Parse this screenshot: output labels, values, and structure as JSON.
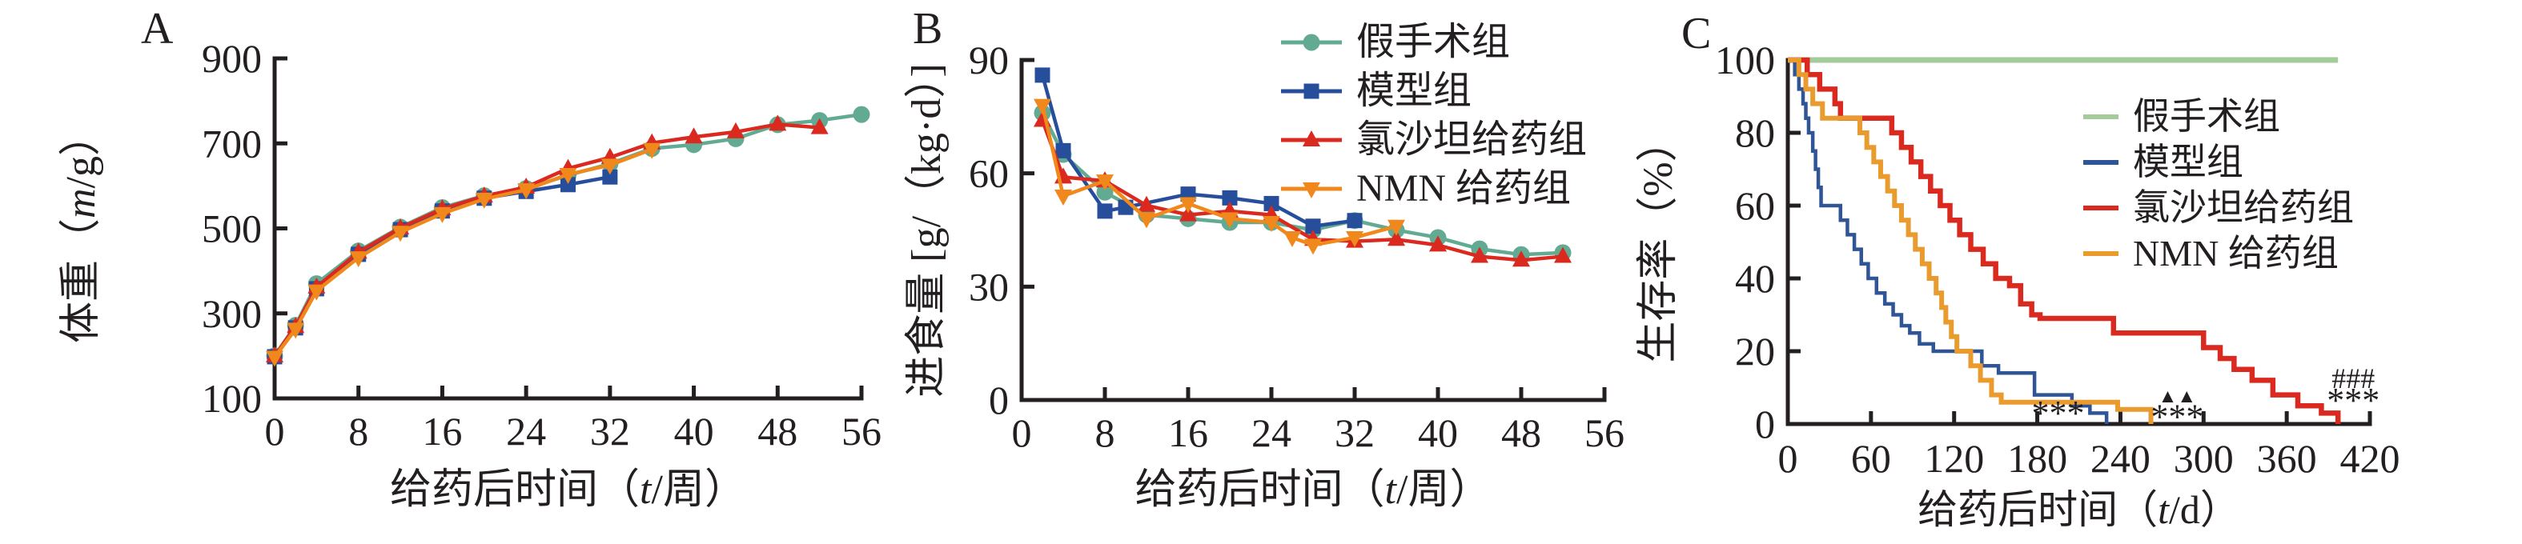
{
  "figure_type": "three-panel scientific figure (rat study: body weight, food intake, survival)",
  "colors": {
    "axis": "#231f20",
    "text": "#231f20",
    "sham_ab": "#63aa93",
    "model_ab": "#274e9b",
    "losartan": "#da291e",
    "nmn_ab": "#f0881c",
    "sham_c": "#a4cb9a",
    "model_c": "#2f5597",
    "losartan_c": "#da291e",
    "nmn_c": "#e99b2e",
    "annotation": "#2b2a29"
  },
  "panels": [
    {
      "letter": "A",
      "ylabel": {
        "pre": "体重（",
        "var": "m",
        "post": "/g）"
      },
      "xlabel": {
        "pre": "给药后时间（",
        "var": "t",
        "post": "/周）"
      }
    },
    {
      "letter": "B",
      "ylabel": {
        "pre": "进食量 [g/（kg·d）]",
        "var": "",
        "post": ""
      },
      "xlabel": {
        "pre": "给药后时间（",
        "var": "t",
        "post": "/周）"
      }
    },
    {
      "letter": "C",
      "ylabel": {
        "pre": "生存率（%）",
        "var": "",
        "post": ""
      },
      "xlabel": {
        "pre": "给药后时间（",
        "var": "t",
        "post": "/d）"
      }
    }
  ],
  "legend": {
    "items": [
      {
        "key": "sham",
        "label": "假手术组",
        "marker": "circle",
        "color_ab": "#63aa93",
        "color_c": "#a4cb9a"
      },
      {
        "key": "model",
        "label": "模型组",
        "marker": "square",
        "color_ab": "#274e9b",
        "color_c": "#2f5597"
      },
      {
        "key": "losartan",
        "label": "氯沙坦给药组",
        "marker": "triangle-up",
        "color_ab": "#da291e",
        "color_c": "#da291e"
      },
      {
        "key": "nmn",
        "label": "NMN 给药组",
        "marker": "triangle-down",
        "color_ab": "#f0881c",
        "color_c": "#e99b2e"
      }
    ]
  },
  "chart_data": [
    {
      "id": "A",
      "type": "line",
      "title": "",
      "xlabel": "给药后时间（t/周）",
      "ylabel": "体重（m/g）",
      "xlim": [
        0,
        56
      ],
      "xticks": [
        0,
        8,
        16,
        24,
        32,
        40,
        48,
        56
      ],
      "ylim": [
        100,
        900
      ],
      "yticks": [
        100,
        300,
        500,
        700,
        900
      ],
      "grid": false,
      "series": [
        {
          "key": "sham",
          "name": "假手术组",
          "marker": "circle",
          "color": "#63aa93",
          "x": [
            0,
            2,
            4,
            8,
            12,
            16,
            20,
            24,
            28,
            32,
            36,
            40,
            44,
            48,
            52,
            56
          ],
          "y": [
            200,
            272,
            370,
            447,
            503,
            549,
            577,
            594,
            625,
            652,
            688,
            697,
            711,
            744,
            754,
            768
          ]
        },
        {
          "key": "model",
          "name": "模型组",
          "marker": "square",
          "color": "#274e9b",
          "x": [
            0,
            2,
            4,
            8,
            12,
            16,
            20,
            24,
            28,
            32
          ],
          "y": [
            198,
            266,
            358,
            439,
            497,
            541,
            571,
            587,
            603,
            621
          ]
        },
        {
          "key": "losartan",
          "name": "氯沙坦给药组",
          "marker": "triangle-up",
          "color": "#da291e",
          "x": [
            0,
            2,
            4,
            8,
            12,
            16,
            20,
            24,
            28,
            32,
            36,
            40,
            44,
            48,
            52
          ],
          "y": [
            200,
            269,
            362,
            444,
            501,
            546,
            576,
            597,
            641,
            667,
            701,
            715,
            727,
            745,
            737
          ]
        },
        {
          "key": "nmn",
          "name": "NMN 给药组",
          "marker": "triangle-down",
          "color": "#f0881c",
          "x": [
            0,
            2,
            4,
            8,
            12,
            16,
            20,
            24,
            28,
            32,
            36
          ],
          "y": [
            197,
            263,
            353,
            431,
            491,
            535,
            569,
            591,
            627,
            649,
            686
          ]
        }
      ]
    },
    {
      "id": "B",
      "type": "line",
      "title": "",
      "xlabel": "给药后时间（t/周）",
      "ylabel": "进食量 [g/（kg·d）]",
      "xlim": [
        0,
        56
      ],
      "xticks": [
        0,
        8,
        16,
        24,
        32,
        40,
        48,
        56
      ],
      "ylim": [
        0,
        90
      ],
      "yticks": [
        0,
        30,
        60,
        90
      ],
      "grid": false,
      "series": [
        {
          "key": "sham",
          "name": "假手术组",
          "marker": "circle",
          "color": "#63aa93",
          "x": [
            2,
            4,
            8,
            12,
            16,
            20,
            24,
            28,
            32,
            36,
            40,
            44,
            48,
            52
          ],
          "y": [
            76,
            65,
            55,
            49,
            48,
            47,
            47,
            45,
            47.5,
            45,
            43,
            40,
            38.5,
            39
          ]
        },
        {
          "key": "model",
          "name": "模型组",
          "marker": "square",
          "color": "#274e9b",
          "x": [
            2,
            4,
            8,
            10,
            16,
            20,
            24,
            28,
            32
          ],
          "y": [
            86,
            66,
            50,
            51,
            54.5,
            53.5,
            52,
            46,
            47.5
          ]
        },
        {
          "key": "losartan",
          "name": "氯沙坦给药组",
          "marker": "triangle-up",
          "color": "#da291e",
          "x": [
            2,
            4,
            8,
            12,
            16,
            20,
            24,
            28,
            32,
            36,
            40,
            44,
            48,
            52
          ],
          "y": [
            74,
            59,
            58,
            51.5,
            49,
            50,
            49,
            42.5,
            42,
            42.5,
            41,
            38,
            37,
            38
          ]
        },
        {
          "key": "nmn",
          "name": "NMN 给药组",
          "marker": "triangle-down",
          "color": "#f0881c",
          "x": [
            2,
            4,
            8,
            12,
            16,
            20,
            24,
            26,
            28,
            32,
            36
          ],
          "y": [
            78,
            54,
            58,
            48,
            52,
            48,
            47,
            43,
            41,
            43,
            46
          ]
        }
      ]
    },
    {
      "id": "C",
      "type": "step-survival",
      "title": "",
      "xlabel": "给药后时间（t/d）",
      "ylabel": "生存率（%）",
      "xlim": [
        0,
        420
      ],
      "xticks": [
        0,
        60,
        120,
        180,
        240,
        300,
        360,
        420
      ],
      "ylim": [
        0,
        100
      ],
      "yticks": [
        0,
        20,
        40,
        60,
        80,
        100
      ],
      "grid": false,
      "series": [
        {
          "key": "sham",
          "name": "假手术组",
          "color": "#a4cb9a",
          "width": 7,
          "points": [
            [
              0,
              100
            ],
            [
              397,
              100
            ]
          ]
        },
        {
          "key": "model",
          "name": "模型组",
          "color": "#2f5597",
          "width": 4.5,
          "points": [
            [
              0,
              100
            ],
            [
              5,
              96
            ],
            [
              8,
              92
            ],
            [
              11,
              88
            ],
            [
              13,
              84
            ],
            [
              15,
              80
            ],
            [
              18,
              75
            ],
            [
              20,
              70
            ],
            [
              22,
              65
            ],
            [
              24,
              60
            ],
            [
              38,
              56
            ],
            [
              43,
              52
            ],
            [
              48,
              48
            ],
            [
              53,
              44
            ],
            [
              58,
              40
            ],
            [
              64,
              36
            ],
            [
              70,
              33
            ],
            [
              76,
              30
            ],
            [
              82,
              27
            ],
            [
              88,
              25
            ],
            [
              95,
              22
            ],
            [
              105,
              20
            ],
            [
              140,
              16
            ],
            [
              152,
              14
            ],
            [
              178,
              8
            ],
            [
              205,
              5
            ],
            [
              218,
              3
            ],
            [
              230,
              0
            ]
          ]
        },
        {
          "key": "losartan",
          "name": "氯沙坦给药组",
          "color": "#da291e",
          "width": 6.5,
          "points": [
            [
              0,
              100
            ],
            [
              14,
              96
            ],
            [
              23,
              92
            ],
            [
              34,
              88
            ],
            [
              38,
              84
            ],
            [
              75,
              80
            ],
            [
              82,
              76
            ],
            [
              89,
              72
            ],
            [
              96,
              68
            ],
            [
              103,
              64
            ],
            [
              110,
              60
            ],
            [
              117,
              56
            ],
            [
              124,
              52
            ],
            [
              132,
              48
            ],
            [
              141,
              44
            ],
            [
              150,
              40
            ],
            [
              160,
              38
            ],
            [
              168,
              33
            ],
            [
              176,
              30
            ],
            [
              182,
              29
            ],
            [
              235,
              25
            ],
            [
              300,
              21
            ],
            [
              312,
              18
            ],
            [
              322,
              15
            ],
            [
              335,
              12
            ],
            [
              350,
              8
            ],
            [
              368,
              5
            ],
            [
              385,
              3
            ],
            [
              397,
              0
            ]
          ]
        },
        {
          "key": "nmn",
          "name": "NMN 给药组",
          "color": "#e99b2e",
          "width": 6,
          "points": [
            [
              0,
              100
            ],
            [
              8,
              96
            ],
            [
              13,
              92
            ],
            [
              18,
              88
            ],
            [
              25,
              84
            ],
            [
              52,
              80
            ],
            [
              57,
              76
            ],
            [
              62,
              72
            ],
            [
              67,
              68
            ],
            [
              72,
              64
            ],
            [
              77,
              60
            ],
            [
              82,
              56
            ],
            [
              87,
              52
            ],
            [
              92,
              48
            ],
            [
              97,
              44
            ],
            [
              102,
              40
            ],
            [
              107,
              36
            ],
            [
              111,
              32
            ],
            [
              114,
              28
            ],
            [
              118,
              24
            ],
            [
              122,
              20
            ],
            [
              132,
              16
            ],
            [
              139,
              12
            ],
            [
              147,
              8
            ],
            [
              154,
              6
            ],
            [
              238,
              4
            ],
            [
              262,
              0
            ]
          ]
        }
      ],
      "annotations": [
        {
          "text": "***",
          "t": 195,
          "pct": 3,
          "kind": "stars"
        },
        {
          "text": "▲▲",
          "t": 281,
          "pct": 7.5,
          "kind": "triangles"
        },
        {
          "text": "***",
          "t": 281,
          "pct": 2,
          "kind": "stars"
        },
        {
          "text": "###",
          "t": 408,
          "pct": 12.5,
          "kind": "hashes"
        },
        {
          "text": "***",
          "t": 408,
          "pct": 6.5,
          "kind": "stars"
        }
      ]
    }
  ]
}
